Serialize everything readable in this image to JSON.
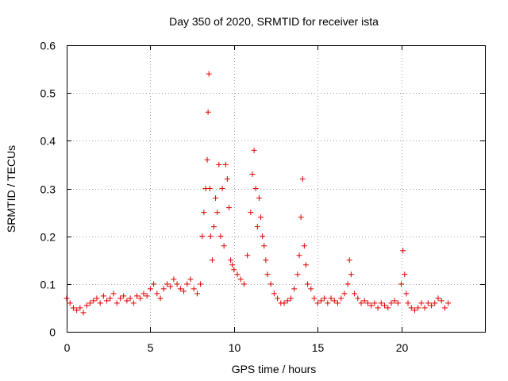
{
  "chart_data": {
    "type": "scatter",
    "title": "Day 350 of 2020, SRMTID for receiver ista",
    "xlabel": "GPS time / hours",
    "ylabel": "SRMTID / TECUs",
    "xlim": [
      0,
      25
    ],
    "ylim": [
      0,
      0.6
    ],
    "grid": true,
    "xticks": [
      0,
      5,
      10,
      15,
      20
    ],
    "xtick_labels": [
      "0",
      "5",
      "10",
      "15",
      "20"
    ],
    "yticks": [
      0,
      0.1,
      0.2,
      0.3,
      0.4,
      0.5,
      0.6
    ],
    "ytick_labels": [
      "0",
      "0.1",
      "0.2",
      "0.3",
      "0.4",
      "0.5",
      "0.6"
    ],
    "marker": "+",
    "marker_color": "#e00000",
    "series": [
      {
        "name": "SRMTID",
        "x": [
          0.0,
          0.2,
          0.4,
          0.6,
          0.8,
          1.0,
          1.2,
          1.4,
          1.6,
          1.8,
          2.0,
          2.2,
          2.4,
          2.6,
          2.8,
          3.0,
          3.2,
          3.4,
          3.6,
          3.8,
          4.0,
          4.2,
          4.4,
          4.6,
          4.8,
          5.0,
          5.2,
          5.4,
          5.6,
          5.8,
          6.0,
          6.2,
          6.4,
          6.6,
          6.8,
          7.0,
          7.2,
          7.4,
          7.6,
          7.8,
          8.0,
          8.1,
          8.2,
          8.3,
          8.4,
          8.45,
          8.5,
          8.55,
          8.6,
          8.7,
          8.8,
          8.9,
          9.0,
          9.1,
          9.2,
          9.3,
          9.4,
          9.5,
          9.6,
          9.7,
          9.8,
          9.9,
          10.0,
          10.2,
          10.4,
          10.6,
          10.8,
          11.0,
          11.1,
          11.2,
          11.3,
          11.4,
          11.5,
          11.6,
          11.7,
          11.8,
          11.9,
          12.0,
          12.2,
          12.4,
          12.6,
          12.8,
          13.0,
          13.2,
          13.4,
          13.6,
          13.8,
          13.9,
          14.0,
          14.1,
          14.2,
          14.3,
          14.4,
          14.6,
          14.8,
          15.0,
          15.2,
          15.4,
          15.6,
          15.8,
          16.0,
          16.2,
          16.4,
          16.6,
          16.8,
          16.9,
          17.0,
          17.2,
          17.4,
          17.6,
          17.8,
          18.0,
          18.2,
          18.4,
          18.6,
          18.8,
          19.0,
          19.2,
          19.4,
          19.6,
          19.8,
          20.0,
          20.1,
          20.2,
          20.3,
          20.4,
          20.6,
          20.8,
          21.0,
          21.2,
          21.4,
          21.6,
          21.8,
          22.0,
          22.2,
          22.4,
          22.6,
          22.8
        ],
        "y": [
          0.07,
          0.06,
          0.05,
          0.045,
          0.05,
          0.04,
          0.055,
          0.06,
          0.065,
          0.07,
          0.06,
          0.075,
          0.065,
          0.07,
          0.08,
          0.06,
          0.07,
          0.075,
          0.065,
          0.07,
          0.06,
          0.075,
          0.07,
          0.08,
          0.075,
          0.09,
          0.1,
          0.08,
          0.07,
          0.09,
          0.1,
          0.095,
          0.11,
          0.1,
          0.09,
          0.085,
          0.1,
          0.11,
          0.09,
          0.08,
          0.1,
          0.2,
          0.25,
          0.3,
          0.36,
          0.46,
          0.54,
          0.3,
          0.2,
          0.15,
          0.22,
          0.28,
          0.25,
          0.35,
          0.2,
          0.3,
          0.18,
          0.35,
          0.32,
          0.26,
          0.15,
          0.14,
          0.13,
          0.12,
          0.11,
          0.1,
          0.16,
          0.25,
          0.33,
          0.38,
          0.3,
          0.22,
          0.28,
          0.24,
          0.2,
          0.18,
          0.15,
          0.12,
          0.1,
          0.08,
          0.07,
          0.06,
          0.06,
          0.065,
          0.07,
          0.09,
          0.12,
          0.16,
          0.24,
          0.32,
          0.18,
          0.14,
          0.1,
          0.09,
          0.07,
          0.06,
          0.065,
          0.07,
          0.06,
          0.07,
          0.065,
          0.06,
          0.07,
          0.08,
          0.1,
          0.15,
          0.12,
          0.08,
          0.07,
          0.06,
          0.065,
          0.06,
          0.055,
          0.06,
          0.05,
          0.06,
          0.055,
          0.05,
          0.06,
          0.065,
          0.06,
          0.1,
          0.17,
          0.12,
          0.08,
          0.06,
          0.05,
          0.045,
          0.05,
          0.06,
          0.05,
          0.06,
          0.055,
          0.06,
          0.07,
          0.065,
          0.05,
          0.06
        ]
      }
    ]
  }
}
